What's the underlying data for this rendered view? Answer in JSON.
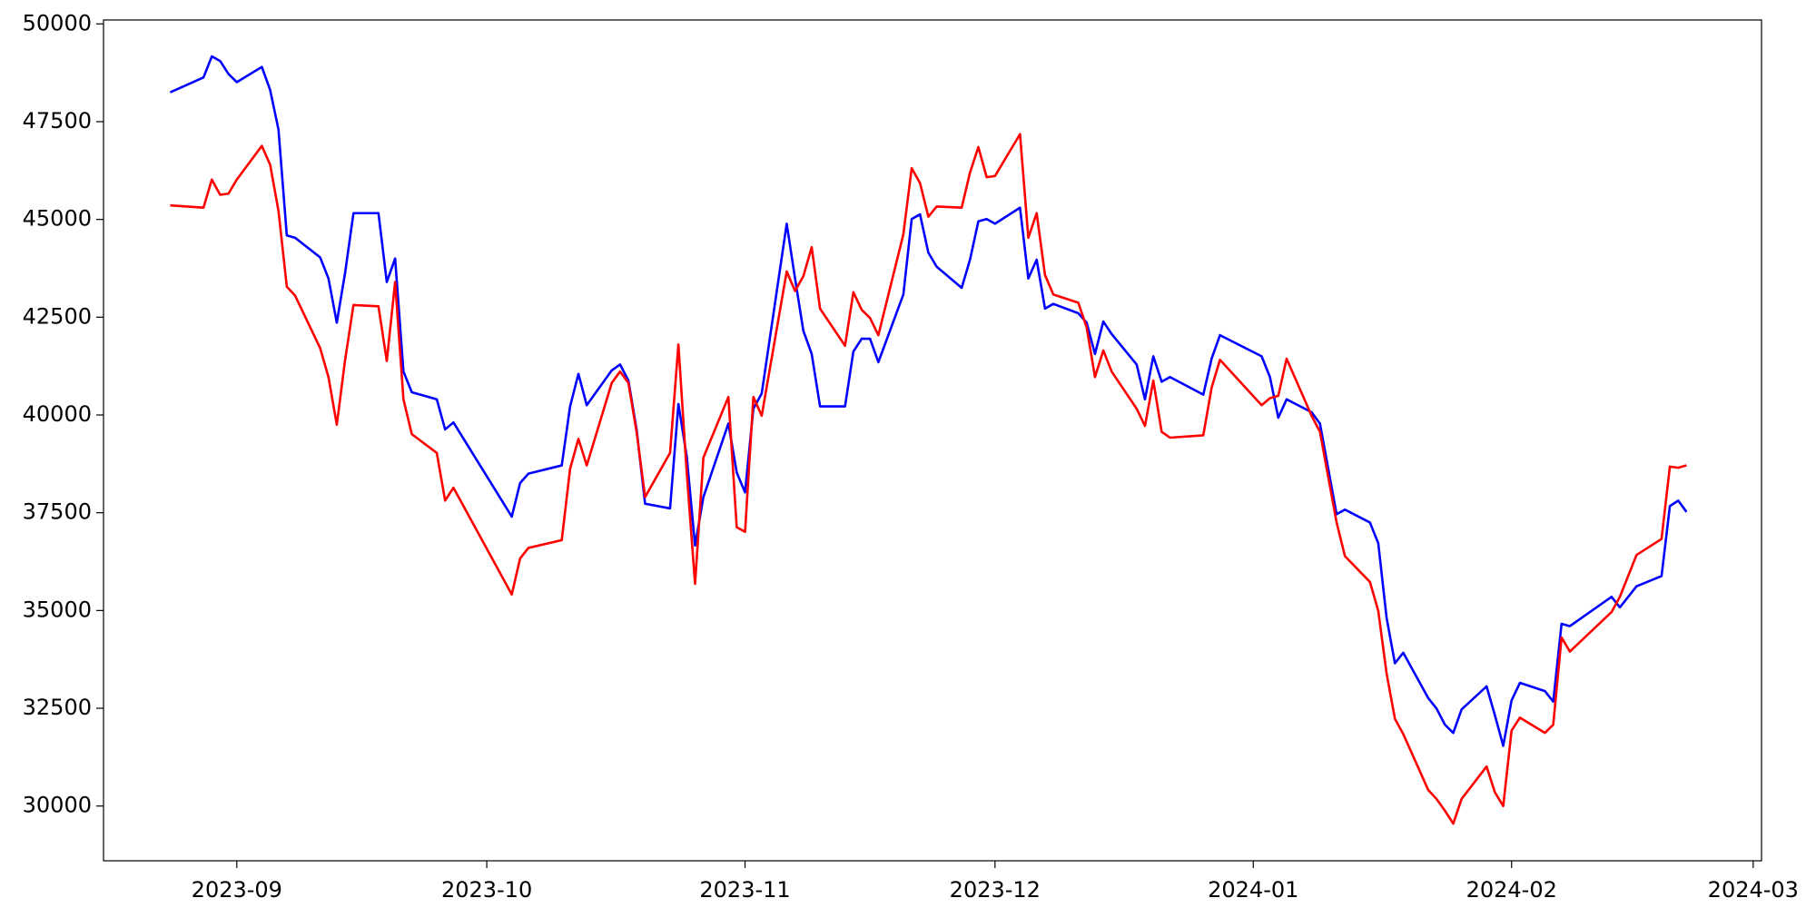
{
  "chart_data": {
    "type": "line",
    "x": [
      "2023-08-24",
      "2023-08-28",
      "2023-08-29",
      "2023-08-30",
      "2023-08-31",
      "2023-09-01",
      "2023-09-04",
      "2023-09-05",
      "2023-09-06",
      "2023-09-07",
      "2023-09-08",
      "2023-09-11",
      "2023-09-12",
      "2023-09-13",
      "2023-09-14",
      "2023-09-15",
      "2023-09-18",
      "2023-09-19",
      "2023-09-20",
      "2023-09-21",
      "2023-09-22",
      "2023-09-25",
      "2023-09-26",
      "2023-09-27",
      "2023-10-04",
      "2023-10-05",
      "2023-10-06",
      "2023-10-10",
      "2023-10-11",
      "2023-10-12",
      "2023-10-13",
      "2023-10-16",
      "2023-10-17",
      "2023-10-18",
      "2023-10-19",
      "2023-10-20",
      "2023-10-23",
      "2023-10-24",
      "2023-10-25",
      "2023-10-26",
      "2023-10-27",
      "2023-10-30",
      "2023-10-31",
      "2023-11-01",
      "2023-11-02",
      "2023-11-03",
      "2023-11-06",
      "2023-11-07",
      "2023-11-08",
      "2023-11-09",
      "2023-11-10",
      "2023-11-13",
      "2023-11-14",
      "2023-11-15",
      "2023-11-16",
      "2023-11-17",
      "2023-11-20",
      "2023-11-21",
      "2023-11-22",
      "2023-11-23",
      "2023-11-24",
      "2023-11-27",
      "2023-11-28",
      "2023-11-29",
      "2023-11-30",
      "2023-12-01",
      "2023-12-04",
      "2023-12-05",
      "2023-12-06",
      "2023-12-07",
      "2023-12-08",
      "2023-12-11",
      "2023-12-12",
      "2023-12-13",
      "2023-12-14",
      "2023-12-15",
      "2023-12-18",
      "2023-12-19",
      "2023-12-20",
      "2023-12-21",
      "2023-12-22",
      "2023-12-26",
      "2023-12-27",
      "2023-12-28",
      "2024-01-02",
      "2024-01-03",
      "2024-01-04",
      "2024-01-05",
      "2024-01-08",
      "2024-01-09",
      "2024-01-11",
      "2024-01-12",
      "2024-01-15",
      "2024-01-16",
      "2024-01-17",
      "2024-01-18",
      "2024-01-19",
      "2024-01-22",
      "2024-01-23",
      "2024-01-24",
      "2024-01-25",
      "2024-01-26",
      "2024-01-29",
      "2024-01-30",
      "2024-01-31",
      "2024-02-01",
      "2024-02-02",
      "2024-02-05",
      "2024-02-06",
      "2024-02-07",
      "2024-02-08",
      "2024-02-13",
      "2024-02-14",
      "2024-02-16",
      "2024-02-19",
      "2024-02-20",
      "2024-02-21",
      "2024-02-22"
    ],
    "series": [
      {
        "color": "#0000ff",
        "values": [
          48250,
          48630,
          49170,
          49050,
          48720,
          48510,
          48900,
          48310,
          47300,
          44590,
          44530,
          44030,
          43490,
          42360,
          43640,
          45160,
          45160,
          43400,
          44000,
          41110,
          40580,
          40400,
          39630,
          39810,
          37400,
          38260,
          38500,
          38710,
          40220,
          41050,
          40250,
          41140,
          41290,
          40880,
          39600,
          37730,
          37610,
          40280,
          38940,
          36660,
          37900,
          39780,
          38530,
          38020,
          40160,
          40550,
          44890,
          43490,
          42150,
          41560,
          40220,
          40220,
          41620,
          41950,
          41950,
          41350,
          43080,
          45010,
          45130,
          44150,
          43790,
          43250,
          43970,
          44950,
          45010,
          44890,
          45300,
          43490,
          43970,
          42720,
          42840,
          42600,
          42360,
          41560,
          42390,
          42070,
          41290,
          40400,
          41500,
          40850,
          40970,
          40520,
          41440,
          42040,
          41500,
          40970,
          39930,
          40400,
          40070,
          39780,
          37460,
          37580,
          37250,
          36720,
          34810,
          33650,
          33920,
          32760,
          32490,
          32080,
          31870,
          32470,
          33060,
          32320,
          31540,
          32700,
          33150,
          32940,
          32670,
          34660,
          34600,
          35350,
          35080,
          35620,
          35880,
          37670,
          37810,
          37520
        ]
      },
      {
        "color": "#ff0000",
        "values": [
          45360,
          45300,
          46020,
          45630,
          45660,
          46020,
          46880,
          46400,
          45220,
          43280,
          43050,
          41710,
          40970,
          39750,
          41410,
          42810,
          42780,
          41380,
          43400,
          40400,
          39510,
          39030,
          37810,
          38140,
          35410,
          36330,
          36600,
          36800,
          38620,
          39390,
          38710,
          40820,
          41110,
          40820,
          39540,
          37900,
          39030,
          41800,
          38530,
          35680,
          38910,
          40460,
          37130,
          37010,
          40460,
          39980,
          43670,
          43170,
          43550,
          44290,
          42720,
          41770,
          43140,
          42690,
          42480,
          42040,
          44620,
          46310,
          45930,
          45070,
          45330,
          45300,
          46200,
          46850,
          46080,
          46110,
          47180,
          44530,
          45160,
          43580,
          43080,
          42870,
          42240,
          40970,
          41650,
          41110,
          40160,
          39720,
          40880,
          39570,
          39420,
          39480,
          40700,
          41410,
          40250,
          40430,
          40490,
          41440,
          39980,
          39570,
          37250,
          36390,
          35730,
          34990,
          33390,
          32230,
          31840,
          30410,
          30180,
          29880,
          29550,
          30180,
          31010,
          30350,
          30000,
          31930,
          32260,
          31870,
          32080,
          34310,
          33950,
          34960,
          35350,
          36420,
          36830,
          38680,
          38650,
          38710
        ]
      }
    ],
    "xlim": [
      "2023-08-16",
      "2024-03-02"
    ],
    "xticks": [
      {
        "value": "2023-09-01",
        "label": "2023-09"
      },
      {
        "value": "2023-10-01",
        "label": "2023-10"
      },
      {
        "value": "2023-11-01",
        "label": "2023-11"
      },
      {
        "value": "2023-12-01",
        "label": "2023-12"
      },
      {
        "value": "2024-01-01",
        "label": "2024-01"
      },
      {
        "value": "2024-02-01",
        "label": "2024-02"
      },
      {
        "value": "2024-03-01",
        "label": "2024-03"
      }
    ],
    "ylim": [
      28600,
      50100
    ],
    "yticks": [
      30000,
      32500,
      35000,
      37500,
      40000,
      42500,
      45000,
      47500,
      50000
    ],
    "grid": false
  }
}
